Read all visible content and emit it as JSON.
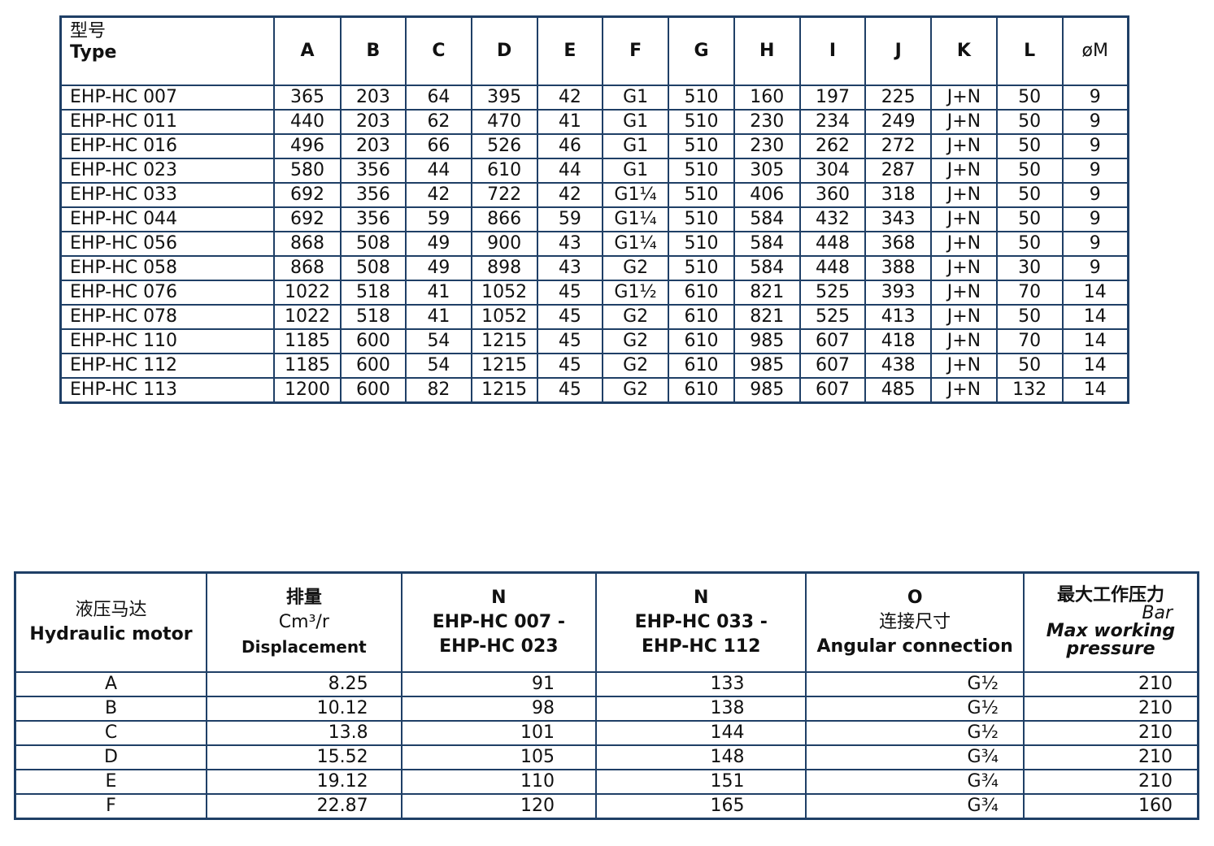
{
  "dims_table": {
    "type_label_cn": "型号",
    "type_label_en": "Type",
    "columns": [
      "A",
      "B",
      "C",
      "D",
      "E",
      "F",
      "G",
      "H",
      "I",
      "J",
      "K",
      "L",
      "øM"
    ],
    "rows": [
      [
        "EHP-HC 007",
        "365",
        "203",
        "64",
        "395",
        "42",
        "G1",
        "510",
        "160",
        "197",
        "225",
        "J+N",
        "50",
        "9"
      ],
      [
        "EHP-HC 011",
        "440",
        "203",
        "62",
        "470",
        "41",
        "G1",
        "510",
        "230",
        "234",
        "249",
        "J+N",
        "50",
        "9"
      ],
      [
        "EHP-HC 016",
        "496",
        "203",
        "66",
        "526",
        "46",
        "G1",
        "510",
        "230",
        "262",
        "272",
        "J+N",
        "50",
        "9"
      ],
      [
        "EHP-HC 023",
        "580",
        "356",
        "44",
        "610",
        "44",
        "G1",
        "510",
        "305",
        "304",
        "287",
        "J+N",
        "50",
        "9"
      ],
      [
        "EHP-HC 033",
        "692",
        "356",
        "42",
        "722",
        "42",
        "G1¼",
        "510",
        "406",
        "360",
        "318",
        "J+N",
        "50",
        "9"
      ],
      [
        "EHP-HC 044",
        "692",
        "356",
        "59",
        "866",
        "59",
        "G1¼",
        "510",
        "584",
        "432",
        "343",
        "J+N",
        "50",
        "9"
      ],
      [
        "EHP-HC 056",
        "868",
        "508",
        "49",
        "900",
        "43",
        "G1¼",
        "510",
        "584",
        "448",
        "368",
        "J+N",
        "50",
        "9"
      ],
      [
        "EHP-HC 058",
        "868",
        "508",
        "49",
        "898",
        "43",
        "G2",
        "510",
        "584",
        "448",
        "388",
        "J+N",
        "30",
        "9"
      ],
      [
        "EHP-HC 076",
        "1022",
        "518",
        "41",
        "1052",
        "45",
        "G1½",
        "610",
        "821",
        "525",
        "393",
        "J+N",
        "70",
        "14"
      ],
      [
        "EHP-HC 078",
        "1022",
        "518",
        "41",
        "1052",
        "45",
        "G2",
        "610",
        "821",
        "525",
        "413",
        "J+N",
        "50",
        "14"
      ],
      [
        "EHP-HC 110",
        "1185",
        "600",
        "54",
        "1215",
        "45",
        "G2",
        "610",
        "985",
        "607",
        "418",
        "J+N",
        "70",
        "14"
      ],
      [
        "EHP-HC 112",
        "1185",
        "600",
        "54",
        "1215",
        "45",
        "G2",
        "610",
        "985",
        "607",
        "438",
        "J+N",
        "50",
        "14"
      ],
      [
        "EHP-HC 113",
        "1200",
        "600",
        "82",
        "1215",
        "45",
        "G2",
        "610",
        "985",
        "607",
        "485",
        "J+N",
        "132",
        "14"
      ]
    ]
  },
  "motor_table": {
    "h1_cn": "液压马达",
    "h1_en": "Hydraulic motor",
    "h2_cn": "排量",
    "h2_unit": "Cm³/r",
    "h2_en": "Displacement",
    "h3_a": "N",
    "h3_b": "EHP-HC 007 -",
    "h3_c": "EHP-HC 023",
    "h4_a": "N",
    "h4_b": "EHP-HC 033 -",
    "h4_c": "EHP-HC 112",
    "h5_a": "O",
    "h5_cn": "连接尺寸",
    "h5_en": "Angular connection",
    "h6_cn": "最大工作压力",
    "h6_unit": "Bar",
    "h6_en1": "Max working",
    "h6_en2": "pressure",
    "rows": [
      [
        "A",
        "8.25",
        "91",
        "133",
        "G½",
        "210"
      ],
      [
        "B",
        "10.12",
        "98",
        "138",
        "G½",
        "210"
      ],
      [
        "C",
        "13.8",
        "101",
        "144",
        "G½",
        "210"
      ],
      [
        "D",
        "15.52",
        "105",
        "148",
        "G¾",
        "210"
      ],
      [
        "E",
        "19.12",
        "110",
        "151",
        "G¾",
        "210"
      ],
      [
        "F",
        "22.87",
        "120",
        "165",
        "G¾",
        "160"
      ]
    ]
  }
}
